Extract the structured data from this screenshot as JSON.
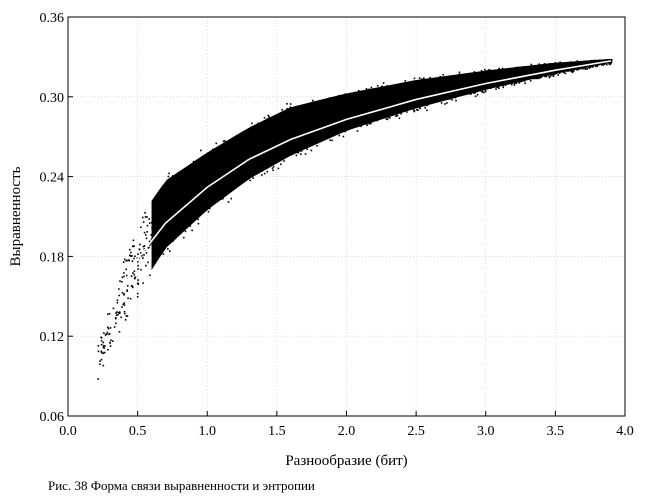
{
  "caption": "Рис. 38  Форма связи выравненности и энтропии",
  "chart_data": {
    "type": "scatter",
    "title": "",
    "xlabel": "Разнообразие (бит)",
    "ylabel": "Выравненность",
    "xlim": [
      0.0,
      4.0
    ],
    "ylim": [
      0.06,
      0.36
    ],
    "x_ticks": [
      0.0,
      0.5,
      1.0,
      1.5,
      2.0,
      2.5,
      3.0,
      3.5,
      4.0
    ],
    "y_ticks": [
      0.06,
      0.12,
      0.18,
      0.24,
      0.3,
      0.36
    ],
    "x_tick_labels": [
      "0.0",
      "0.5",
      "1.0",
      "1.5",
      "2.0",
      "2.5",
      "3.0",
      "3.5",
      "4.0"
    ],
    "y_tick_labels": [
      "0.06",
      "0.12",
      "0.18",
      "0.24",
      "0.30",
      "0.36"
    ],
    "grid": true,
    "point_color": "#000000",
    "trend_color": "#ffffff",
    "cloud": {
      "x": [
        0.2,
        0.3,
        0.5,
        0.7,
        1.0,
        1.3,
        1.6,
        2.0,
        2.5,
        3.0,
        3.5,
        3.9
      ],
      "y_lower": [
        0.085,
        0.105,
        0.145,
        0.178,
        0.208,
        0.232,
        0.25,
        0.27,
        0.288,
        0.303,
        0.316,
        0.325
      ],
      "y_upper": [
        0.115,
        0.155,
        0.215,
        0.245,
        0.265,
        0.283,
        0.298,
        0.307,
        0.316,
        0.322,
        0.327,
        0.329
      ]
    },
    "trend": {
      "x": [
        0.35,
        0.5,
        0.7,
        1.0,
        1.3,
        1.6,
        2.0,
        2.5,
        3.0,
        3.5,
        3.9
      ],
      "y": [
        0.15,
        0.178,
        0.205,
        0.232,
        0.253,
        0.268,
        0.283,
        0.298,
        0.31,
        0.32,
        0.327
      ]
    }
  }
}
